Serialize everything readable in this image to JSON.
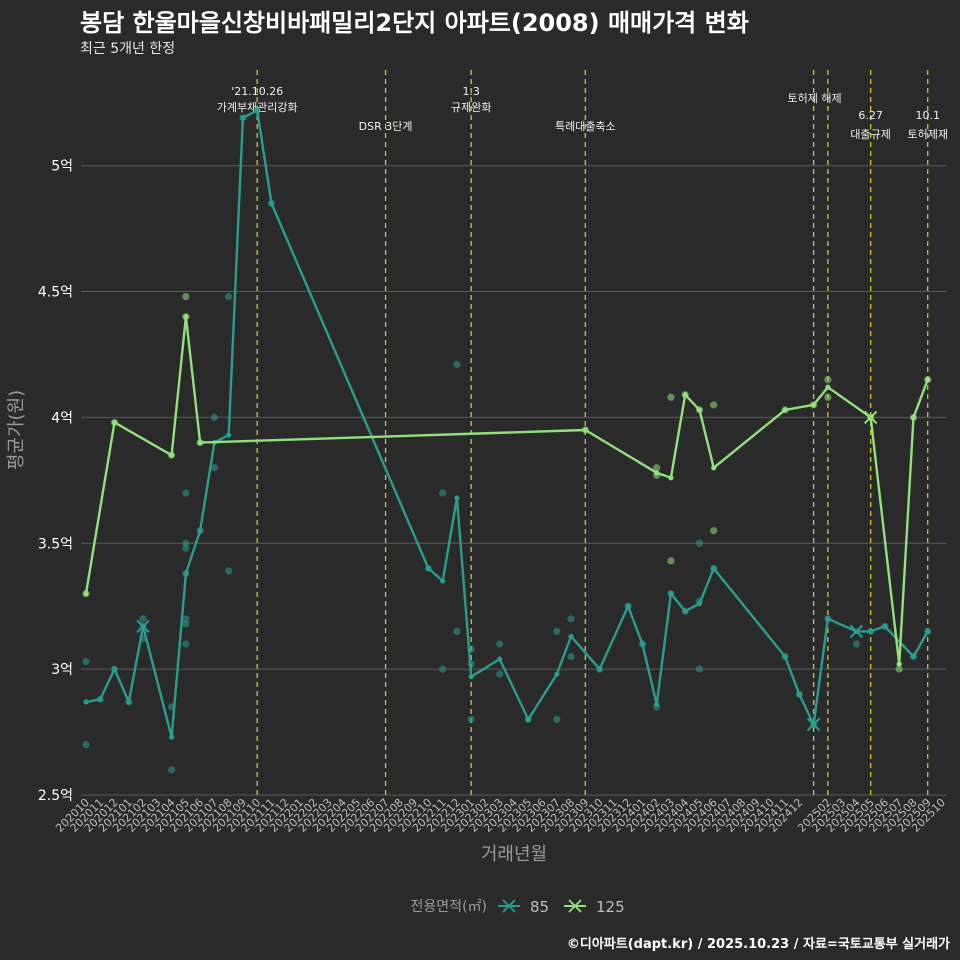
{
  "title": "봉담 한울마을신창비바패밀리2단지 아파트(2008) 매매가격 변화",
  "subtitle": "최근 5개년 한정",
  "caption": "©디아파트(dapt.kr) / 2025.10.23 / 자료=국토교통부 실거래가",
  "colors": {
    "background": "#2b2a2b",
    "grid": "#5a5a5a",
    "event_line": "#c8c830",
    "series_85": "#2a9d8f",
    "series_125": "#93e07f",
    "text": "#ffffff",
    "axis_text": "#bfbfbf"
  },
  "chart_data": {
    "type": "line",
    "xlabel": "거래년월",
    "ylabel": "평균가(원)",
    "ylim": [
      2.5,
      5.4
    ],
    "yticks": [
      2.5,
      3,
      3.5,
      4,
      4.5,
      5
    ],
    "ytick_labels": [
      "2.5억",
      "3억",
      "3.5억",
      "4억",
      "4.5억",
      "5억"
    ],
    "x_months": [
      "202010",
      "202011",
      "202012",
      "202101",
      "202102",
      "202103",
      "202104",
      "202105",
      "202106",
      "202107",
      "202108",
      "202109",
      "202110",
      "202111",
      "202112",
      "202201",
      "202202",
      "202203",
      "202204",
      "202205",
      "202206",
      "202207",
      "202208",
      "202209",
      "202210",
      "202211",
      "202212",
      "202301",
      "202302",
      "202303",
      "202304",
      "202305",
      "202306",
      "202307",
      "202308",
      "202309",
      "202310",
      "202311",
      "202312",
      "202401",
      "202402",
      "202403",
      "202404",
      "202405",
      "202406",
      "202407",
      "202408",
      "202409",
      "202410",
      "202411",
      "202412",
      "202501",
      "202502",
      "202503",
      "202504",
      "202505",
      "202506",
      "202507",
      "202508",
      "202509",
      "202510"
    ],
    "x_tick_labels": [
      "202010",
      "202011",
      "202012",
      "202101",
      "202102",
      "202103",
      "202104",
      "202105",
      "202106",
      "202107",
      "202108",
      "202109",
      "202110",
      "202111",
      "202112",
      "202201",
      "202202",
      "202203",
      "202204",
      "202205",
      "202206",
      "202207",
      "202208",
      "202209",
      "202210",
      "202211",
      "202212",
      "202301",
      "202302",
      "202303",
      "202304",
      "202305",
      "202306",
      "202307",
      "202308",
      "202309",
      "202310",
      "202311",
      "202312",
      "202401",
      "202402",
      "202403",
      "202404",
      "202405",
      "202406",
      "202407",
      "202408",
      "202409",
      "202410",
      "202411",
      "202412",
      "202502",
      "202503",
      "202504",
      "202505",
      "202506",
      "202507",
      "202508",
      "202509",
      "202510"
    ],
    "legend": {
      "title": "전용면적(㎡)",
      "entries": [
        "85",
        "125"
      ],
      "position": "bottom"
    },
    "series": [
      {
        "name": "85",
        "color_key": "series_85",
        "line": [
          [
            "202010",
            2.87
          ],
          [
            "202011",
            2.88
          ],
          [
            "202012",
            3.0
          ],
          [
            "202101",
            2.87
          ],
          [
            "202102",
            3.17
          ],
          [
            "202104",
            2.73
          ],
          [
            "202105",
            3.38
          ],
          [
            "202106",
            3.55
          ],
          [
            "202107",
            3.9
          ],
          [
            "202108",
            3.93
          ],
          [
            "202109",
            5.19
          ],
          [
            "202110",
            5.22
          ],
          [
            "202111",
            4.85
          ],
          [
            "202210",
            3.4
          ],
          [
            "202211",
            3.35
          ],
          [
            "202212",
            3.68
          ],
          [
            "202301",
            2.97
          ],
          [
            "202303",
            3.04
          ],
          [
            "202305",
            2.8
          ],
          [
            "202307",
            2.98
          ],
          [
            "202308",
            3.13
          ],
          [
            "202310",
            3.0
          ],
          [
            "202312",
            3.25
          ],
          [
            "202401",
            3.1
          ],
          [
            "202402",
            2.86
          ],
          [
            "202403",
            3.3
          ],
          [
            "202404",
            3.23
          ],
          [
            "202405",
            3.26
          ],
          [
            "202406",
            3.4
          ],
          [
            "202411",
            3.05
          ],
          [
            "202412",
            2.9
          ],
          [
            "202501",
            2.78
          ],
          [
            "202502",
            3.2
          ],
          [
            "202504",
            3.15
          ],
          [
            "202505",
            3.15
          ],
          [
            "202506",
            3.17
          ],
          [
            "202508",
            3.05
          ],
          [
            "202509",
            3.15
          ]
        ],
        "points": [
          [
            "202010",
            3.03
          ],
          [
            "202010",
            2.7
          ],
          [
            "202011",
            2.88
          ],
          [
            "202012",
            3.0
          ],
          [
            "202101",
            2.87
          ],
          [
            "202102",
            3.2
          ],
          [
            "202102",
            3.17
          ],
          [
            "202102",
            3.12
          ],
          [
            "202104",
            2.85
          ],
          [
            "202104",
            2.6
          ],
          [
            "202105",
            3.7
          ],
          [
            "202105",
            3.5
          ],
          [
            "202105",
            3.48
          ],
          [
            "202105",
            3.2
          ],
          [
            "202105",
            3.18
          ],
          [
            "202105",
            3.1
          ],
          [
            "202105",
            3.38
          ],
          [
            "202106",
            3.55
          ],
          [
            "202107",
            4.0
          ],
          [
            "202107",
            3.8
          ],
          [
            "202108",
            4.48
          ],
          [
            "202108",
            3.39
          ],
          [
            "202109",
            5.19
          ],
          [
            "202110",
            5.22
          ],
          [
            "202111",
            4.85
          ],
          [
            "202210",
            3.4
          ],
          [
            "202211",
            3.7
          ],
          [
            "202211",
            3.0
          ],
          [
            "202212",
            4.21
          ],
          [
            "202212",
            3.15
          ],
          [
            "202301",
            3.08
          ],
          [
            "202301",
            2.8
          ],
          [
            "202301",
            3.02
          ],
          [
            "202303",
            3.1
          ],
          [
            "202303",
            2.98
          ],
          [
            "202305",
            2.8
          ],
          [
            "202307",
            3.15
          ],
          [
            "202307",
            2.8
          ],
          [
            "202308",
            3.2
          ],
          [
            "202308",
            3.05
          ],
          [
            "202310",
            3.0
          ],
          [
            "202312",
            3.25
          ],
          [
            "202401",
            3.1
          ],
          [
            "202402",
            2.85
          ],
          [
            "202403",
            3.3
          ],
          [
            "202404",
            3.23
          ],
          [
            "202405",
            3.5
          ],
          [
            "202405",
            3.27
          ],
          [
            "202405",
            3.0
          ],
          [
            "202406",
            3.4
          ],
          [
            "202411",
            3.05
          ],
          [
            "202412",
            2.9
          ],
          [
            "202501",
            2.78
          ],
          [
            "202502",
            3.2
          ],
          [
            "202504",
            3.1
          ],
          [
            "202505",
            3.15
          ],
          [
            "202506",
            3.17
          ],
          [
            "202508",
            3.05
          ],
          [
            "202509",
            3.15
          ]
        ],
        "x_markers": [
          [
            "202102",
            3.17
          ],
          [
            "202501",
            2.78
          ],
          [
            "202504",
            3.15
          ]
        ]
      },
      {
        "name": "125",
        "color_key": "series_125",
        "line": [
          [
            "202010",
            3.3
          ],
          [
            "202012",
            3.98
          ],
          [
            "202104",
            3.85
          ],
          [
            "202105",
            4.4
          ],
          [
            "202106",
            3.9
          ],
          [
            "202309",
            3.95
          ],
          [
            "202402",
            3.78
          ],
          [
            "202403",
            3.76
          ],
          [
            "202404",
            4.09
          ],
          [
            "202405",
            4.03
          ],
          [
            "202406",
            3.8
          ],
          [
            "202411",
            4.03
          ],
          [
            "202501",
            4.05
          ],
          [
            "202502",
            4.12
          ],
          [
            "202505",
            4.0
          ],
          [
            "202507",
            3.02
          ],
          [
            "202508",
            4.0
          ],
          [
            "202509",
            4.15
          ]
        ],
        "points": [
          [
            "202010",
            3.3
          ],
          [
            "202012",
            3.98
          ],
          [
            "202104",
            3.85
          ],
          [
            "202105",
            4.48
          ],
          [
            "202105",
            4.4
          ],
          [
            "202106",
            3.9
          ],
          [
            "202309",
            3.95
          ],
          [
            "202402",
            3.8
          ],
          [
            "202402",
            3.77
          ],
          [
            "202403",
            4.08
          ],
          [
            "202403",
            3.43
          ],
          [
            "202404",
            4.09
          ],
          [
            "202405",
            4.03
          ],
          [
            "202406",
            4.05
          ],
          [
            "202406",
            3.55
          ],
          [
            "202411",
            4.03
          ],
          [
            "202501",
            4.05
          ],
          [
            "202502",
            4.15
          ],
          [
            "202502",
            4.08
          ],
          [
            "202505",
            4.0
          ],
          [
            "202507",
            3.0
          ],
          [
            "202508",
            4.0
          ],
          [
            "202509",
            4.15
          ]
        ],
        "x_markers": [
          [
            "202505",
            4.0
          ]
        ]
      }
    ],
    "events": [
      {
        "month": "202110",
        "line1": "'21.10.26",
        "line2": "가계부채관리강화"
      },
      {
        "month": "202207",
        "line1": "",
        "line2": "DSR 3단계"
      },
      {
        "month": "202301",
        "line1": "1.3",
        "line2": "규제완화"
      },
      {
        "month": "202309",
        "line1": "",
        "line2": "특례대출축소"
      },
      {
        "month": "202501",
        "line1": "토허제 해제",
        "line2": ""
      },
      {
        "month": "202502",
        "line1": "",
        "line2": ""
      },
      {
        "month": "202505",
        "line1": "6.27",
        "line2": "대출규제"
      },
      {
        "month": "202509",
        "line1": "10.1",
        "line2": "토허제재"
      }
    ]
  }
}
